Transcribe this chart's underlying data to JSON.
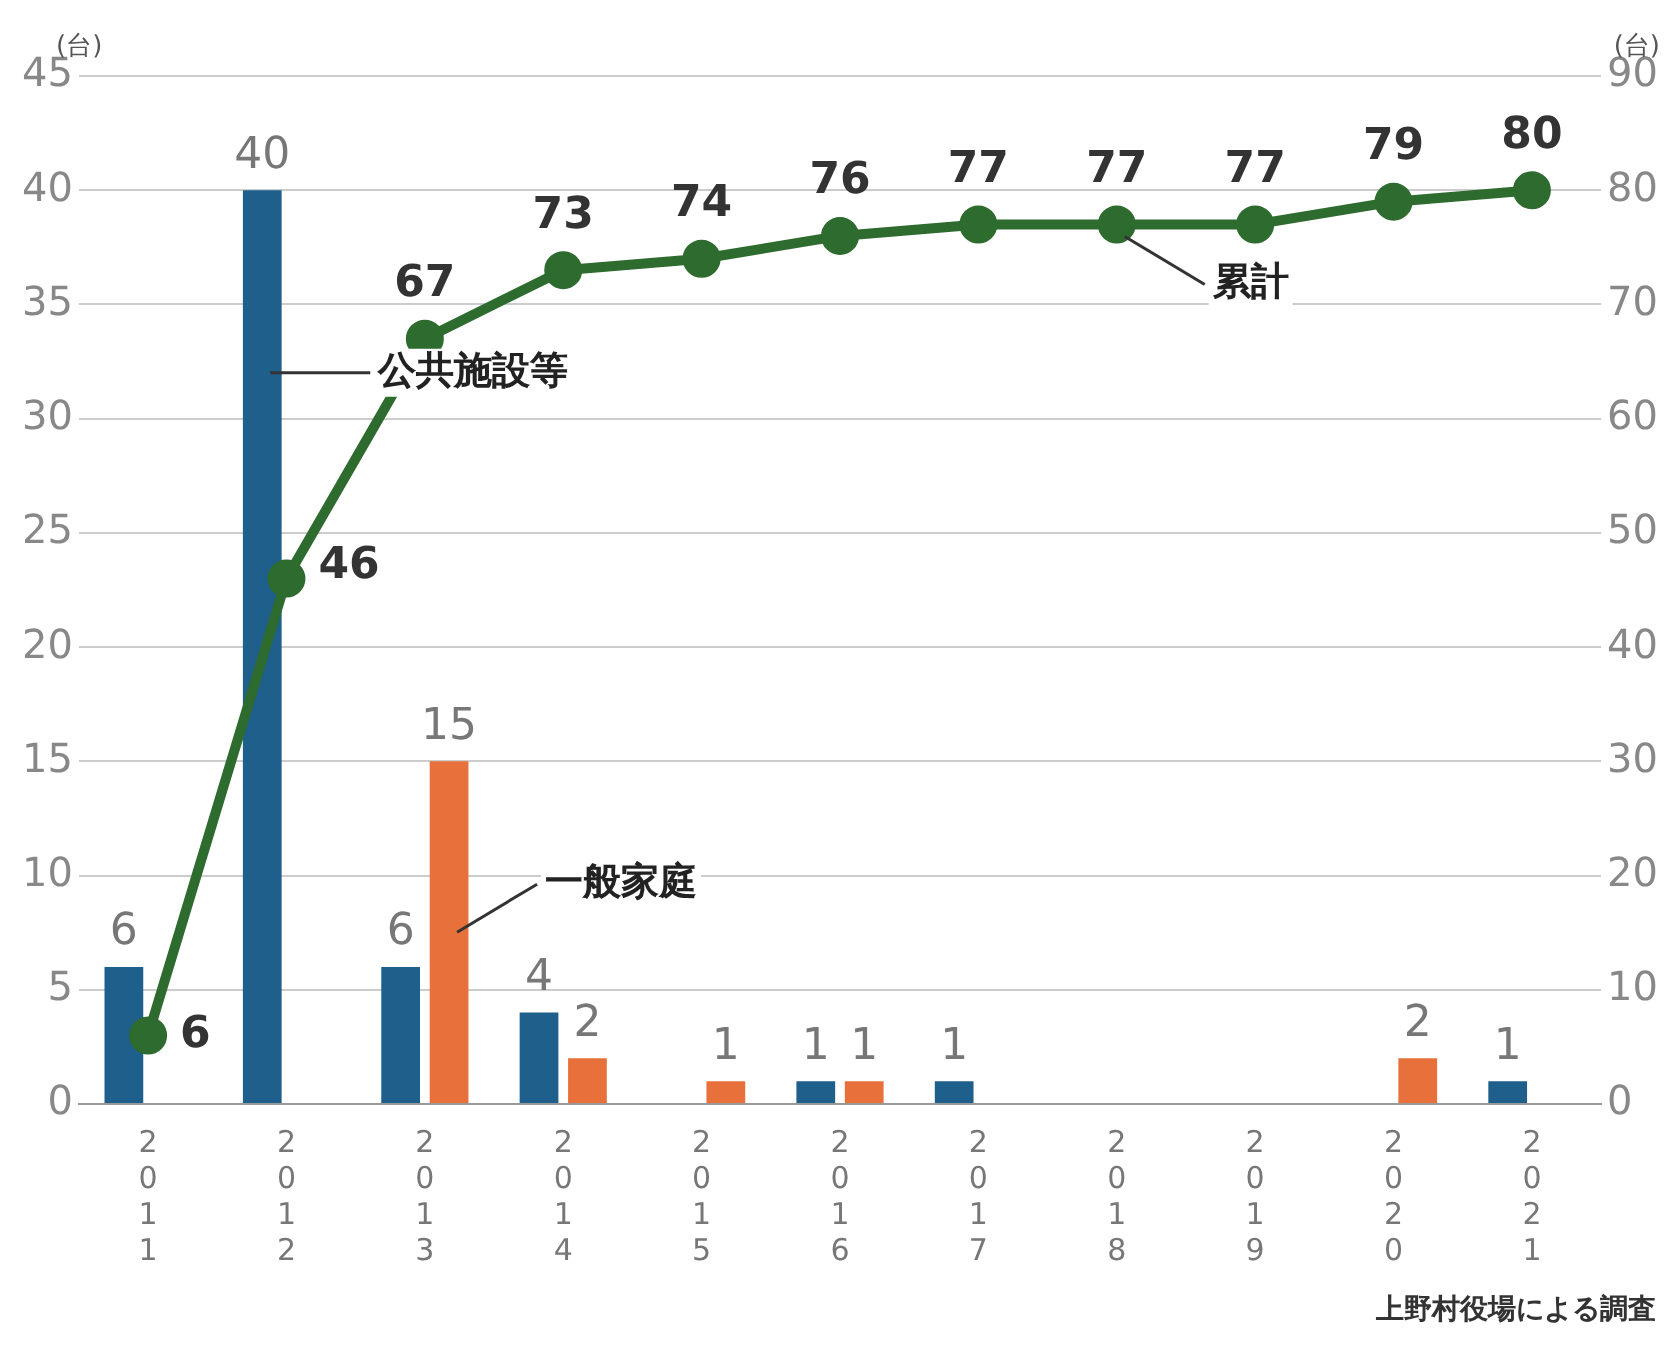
{
  "chart_data": {
    "type": "bar",
    "categories": [
      "2011",
      "2012",
      "2013",
      "2014",
      "2015",
      "2016",
      "2017",
      "2018",
      "2019",
      "2020",
      "2021"
    ],
    "series": [
      {
        "name": "公共施設等",
        "color": "#1f5f8b",
        "values": [
          6,
          40,
          6,
          4,
          0,
          1,
          1,
          0,
          0,
          0,
          1
        ],
        "value_labels": [
          "6",
          "40",
          "6",
          "4",
          null,
          "1",
          "1",
          null,
          null,
          null,
          "1"
        ]
      },
      {
        "name": "一般家庭",
        "color": "#e8703a",
        "values": [
          0,
          0,
          15,
          2,
          1,
          1,
          0,
          0,
          0,
          2,
          0
        ],
        "value_labels": [
          null,
          null,
          "15",
          "2",
          "1",
          "1",
          null,
          null,
          null,
          "2",
          null
        ]
      },
      {
        "name": "累計",
        "type": "line",
        "axis": "y2",
        "color": "#2e6b2e",
        "values": [
          6,
          46,
          67,
          73,
          74,
          76,
          77,
          77,
          77,
          79,
          80
        ],
        "value_labels": [
          "6",
          "46",
          "67",
          "73",
          "74",
          "76",
          "77",
          "77",
          "77",
          "79",
          "80"
        ]
      }
    ],
    "ylabel": "(台)",
    "y2label": "(台)",
    "ylim": [
      0,
      45
    ],
    "yticks": [
      0,
      5,
      10,
      15,
      20,
      25,
      30,
      35,
      40,
      45
    ],
    "y2lim": [
      0,
      90
    ],
    "y2ticks": [
      0,
      10,
      20,
      30,
      40,
      50,
      60,
      70,
      80,
      90
    ],
    "grid": "y",
    "legend": false,
    "marker": "circle",
    "line_style": "solid",
    "annotations": [
      "上野村役場による調査"
    ]
  }
}
